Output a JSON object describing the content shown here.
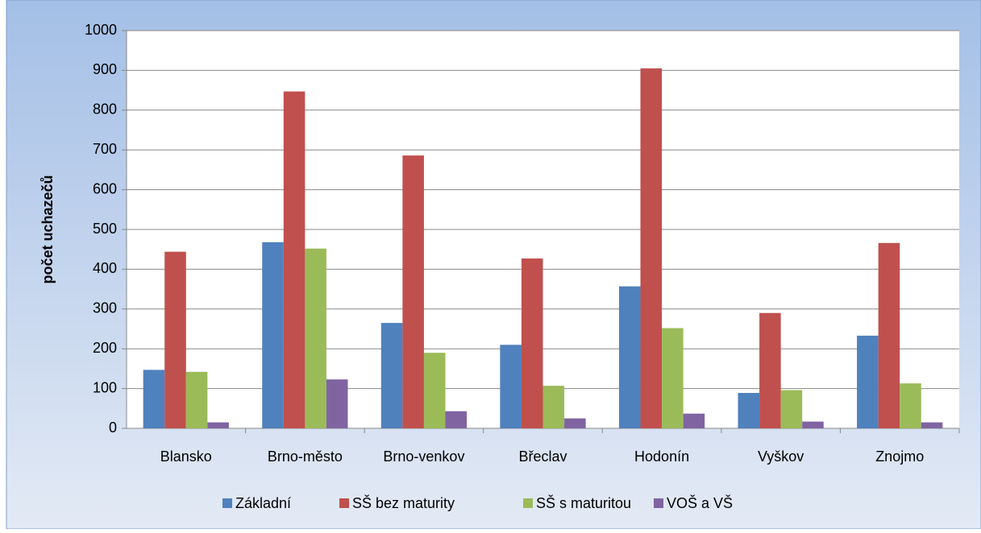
{
  "chart_data": {
    "type": "bar",
    "y_label": "počet uchazečů",
    "categories": [
      "Blansko",
      "Brno-město",
      "Brno-venkov",
      "Břeclav",
      "Hodonín",
      "Vyškov",
      "Znojmo"
    ],
    "series": [
      {
        "name": "Základní",
        "color": "#4f81bd",
        "values": [
          147,
          468,
          265,
          210,
          357,
          89,
          233
        ]
      },
      {
        "name": "SŠ bez maturity",
        "color": "#c0504d",
        "values": [
          444,
          847,
          686,
          427,
          905,
          290,
          466
        ]
      },
      {
        "name": "SŠ s maturitou",
        "color": "#9bbb59",
        "values": [
          142,
          452,
          190,
          107,
          252,
          96,
          113
        ]
      },
      {
        "name": "VOŠ a VŠ",
        "color": "#8064a2",
        "values": [
          15,
          123,
          43,
          25,
          37,
          17,
          15
        ]
      }
    ],
    "ylim": [
      0,
      1000
    ],
    "yticks": [
      0,
      100,
      200,
      300,
      400,
      500,
      600,
      700,
      800,
      900,
      1000
    ],
    "grid": true,
    "legend": "bottom"
  }
}
